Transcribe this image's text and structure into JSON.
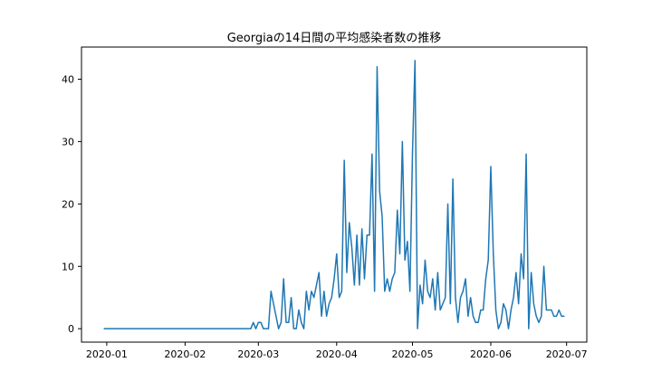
{
  "chart_data": {
    "type": "line",
    "title": "Georgiaの14日間の平均感染者数の推移",
    "xlabel": "",
    "ylabel": "",
    "start_date": "2019-12-31",
    "xlim": [
      "2019-12-22",
      "2020-07-09"
    ],
    "ylim": [
      -2.15,
      45.15
    ],
    "xticks": [
      {
        "date": "2020-01-01",
        "label": "2020-01"
      },
      {
        "date": "2020-02-01",
        "label": "2020-02"
      },
      {
        "date": "2020-03-01",
        "label": "2020-03"
      },
      {
        "date": "2020-04-01",
        "label": "2020-04"
      },
      {
        "date": "2020-05-01",
        "label": "2020-05"
      },
      {
        "date": "2020-06-01",
        "label": "2020-06"
      },
      {
        "date": "2020-07-01",
        "label": "2020-07"
      }
    ],
    "yticks": [
      0,
      10,
      20,
      30,
      40
    ],
    "line_color": "#1f77b4",
    "grid": false,
    "series": [
      {
        "name": "",
        "values": [
          0,
          0,
          0,
          0,
          0,
          0,
          0,
          0,
          0,
          0,
          0,
          0,
          0,
          0,
          0,
          0,
          0,
          0,
          0,
          0,
          0,
          0,
          0,
          0,
          0,
          0,
          0,
          0,
          0,
          0,
          0,
          0,
          0,
          0,
          0,
          0,
          0,
          0,
          0,
          0,
          0,
          0,
          0,
          0,
          0,
          0,
          0,
          0,
          0,
          0,
          0,
          0,
          0,
          0,
          0,
          0,
          0,
          0,
          0,
          1,
          0,
          1,
          1,
          0,
          0,
          0,
          6,
          4,
          2,
          0,
          1,
          8,
          1,
          1,
          5,
          0,
          0,
          3,
          1,
          0,
          6,
          3,
          6,
          5,
          7,
          9,
          2,
          6,
          2,
          4,
          5,
          8,
          12,
          5,
          6,
          27,
          9,
          17,
          13,
          7,
          15,
          7,
          16,
          8,
          15,
          15,
          28,
          6,
          42,
          22,
          18,
          6,
          8,
          6,
          8,
          9,
          19,
          12,
          30,
          11,
          14,
          6,
          28,
          43,
          0,
          7,
          4,
          11,
          6,
          5,
          8,
          3,
          9,
          3,
          4,
          5,
          20,
          4,
          24,
          5,
          1,
          5,
          6,
          8,
          2,
          5,
          2,
          1,
          1,
          3,
          3,
          8,
          11,
          26,
          12,
          3,
          0,
          1,
          4,
          3,
          0,
          3,
          5,
          9,
          4,
          12,
          8,
          28,
          0,
          9,
          4,
          2,
          1,
          2,
          10,
          3,
          3,
          3,
          2,
          2,
          3,
          2,
          2
        ]
      }
    ]
  }
}
